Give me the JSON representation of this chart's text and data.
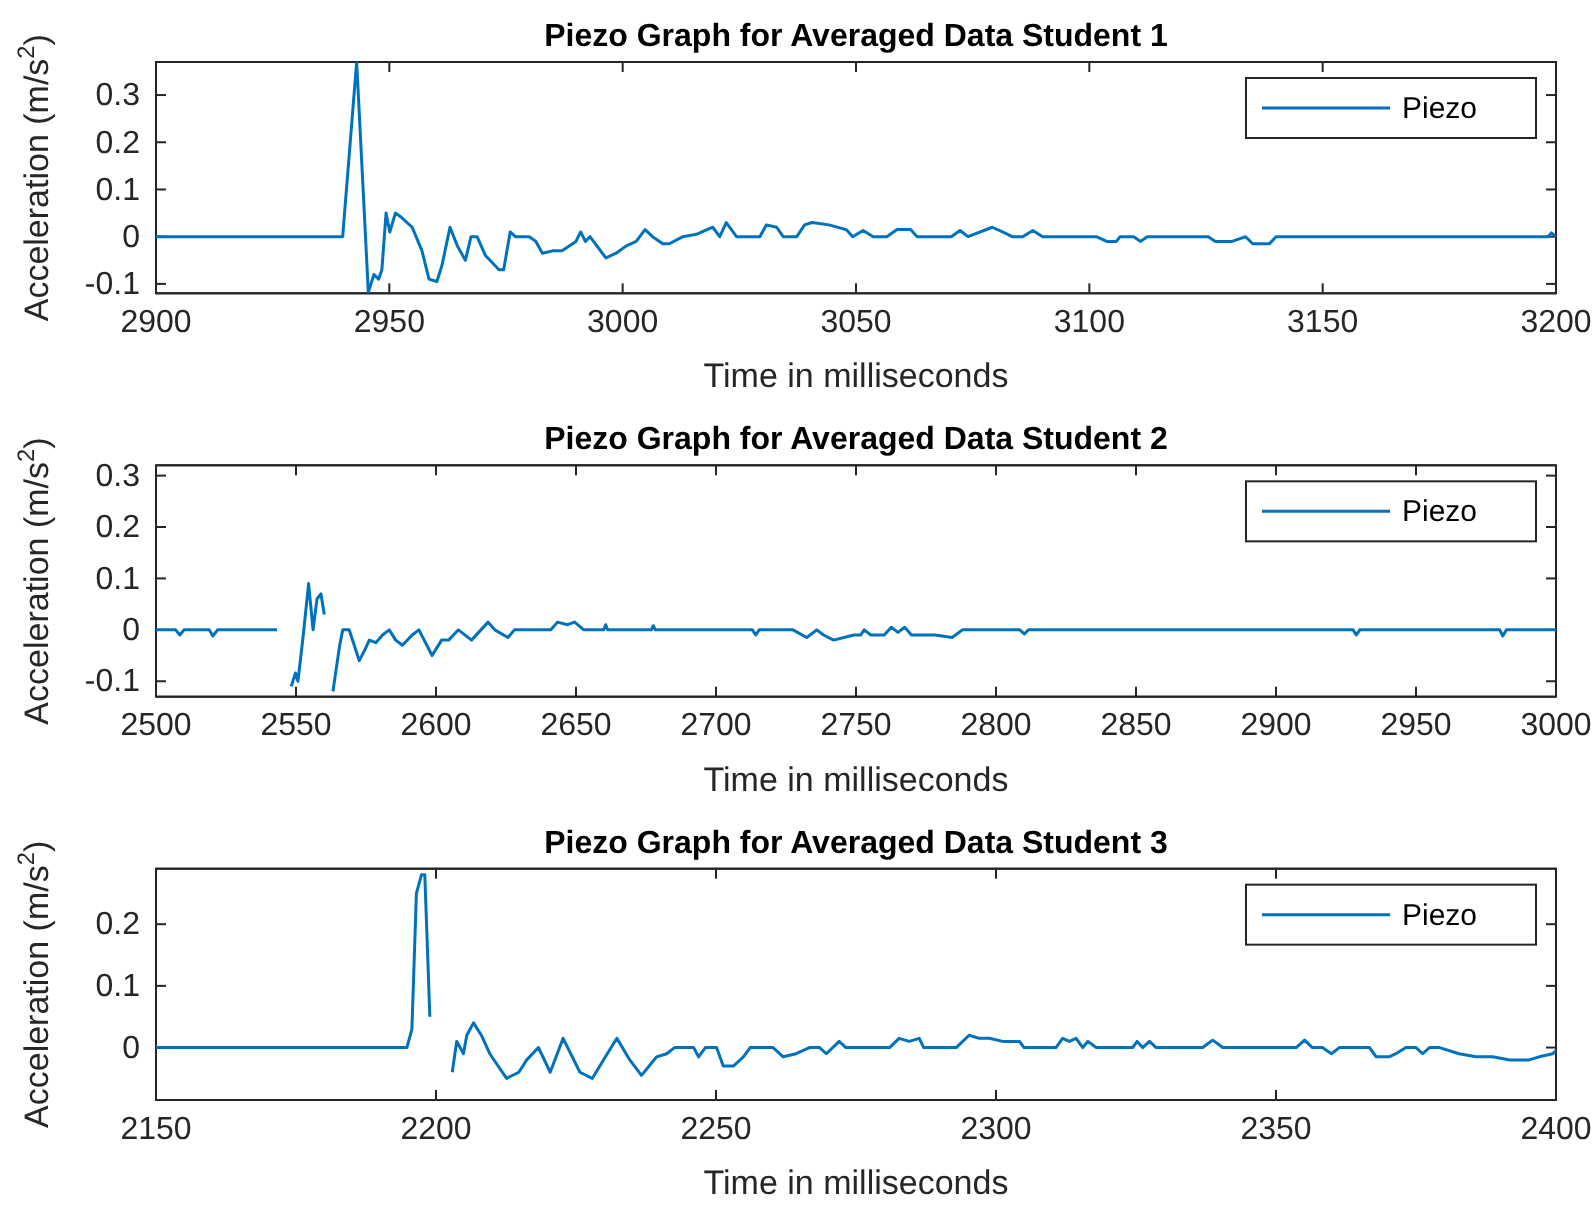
{
  "chart_data": [
    {
      "type": "line",
      "title": "Piezo Graph for Averaged Data Student 1",
      "xlabel": "Time in milliseconds",
      "ylabel": "Acceleration (m/s$^{2}$)",
      "xlim": [
        2900,
        3200
      ],
      "xticks": [
        2900,
        2950,
        3000,
        3050,
        3100,
        3150,
        3200
      ],
      "ylim": [
        -0.12,
        0.37
      ],
      "yticks": [
        -0.1,
        0,
        0.1,
        0.2,
        0.3
      ],
      "grid": false,
      "legend": "top right",
      "line_style": "solid",
      "marker": "none",
      "series": [
        {
          "name": "Piezo",
          "color": "#0072bd",
          "x": [
            2900,
            2940,
            2943,
            2945.5,
            2946.7,
            2947.7,
            2948.4,
            2949.3,
            2950.1,
            2951.3,
            2952.7,
            2954.9,
            2957,
            2958.5,
            2960.2,
            2961.3,
            2963,
            2964.6,
            2966.3,
            2967.5,
            2968.8,
            2970.6,
            2973.5,
            2974.5,
            2975.9,
            2977,
            2980,
            2981.4,
            2982.8,
            2985,
            2987,
            2990,
            2991,
            2992,
            2993,
            2996.4,
            2998.6,
            3000.7,
            3002.9,
            3004.8,
            3006.4,
            3008.6,
            3010,
            3012.9,
            3015.8,
            3019.3,
            3020.8,
            3022.2,
            3024.4,
            3029.4,
            3030.8,
            3033,
            3034.4,
            3037.3,
            3039,
            3040.6,
            3044.2,
            3047.9,
            3049.3,
            3051.5,
            3053.7,
            3056.6,
            3058.8,
            3061.7,
            3063.1,
            3070.4,
            3072.3,
            3074,
            3079.2,
            3081.4,
            3083.5,
            3085.7,
            3087.9,
            3090,
            3101.5,
            3103.7,
            3105.8,
            3106.6,
            3109.5,
            3111,
            3112.4,
            3125.5,
            3127,
            3130.6,
            3133.5,
            3135,
            3138.6,
            3140,
            3198.3,
            3199,
            3200
          ],
          "values": [
            0,
            0,
            0.37,
            -0.118,
            -0.08,
            -0.09,
            -0.07,
            0.05,
            0.01,
            0.05,
            0.04,
            0.02,
            -0.03,
            -0.09,
            -0.095,
            -0.06,
            0.02,
            -0.02,
            -0.05,
            0,
            0,
            -0.04,
            -0.07,
            -0.07,
            0.01,
            0,
            0,
            -0.01,
            -0.035,
            -0.03,
            -0.03,
            -0.01,
            0.01,
            -0.01,
            0,
            -0.045,
            -0.035,
            -0.02,
            -0.01,
            0.015,
            0,
            -0.015,
            -0.015,
            0,
            0.005,
            0.02,
            0,
            0.03,
            0,
            0,
            0.025,
            0.02,
            0,
            0,
            0.025,
            0.03,
            0.025,
            0.015,
            0,
            0.013,
            0,
            0,
            0.015,
            0.015,
            0,
            0,
            0.013,
            0,
            0.02,
            0.01,
            0,
            0,
            0.013,
            0,
            0,
            -0.01,
            -0.01,
            0,
            0,
            -0.01,
            0,
            0,
            -0.01,
            -0.01,
            0,
            -0.015,
            -0.015,
            0,
            0,
            0.008,
            0
          ]
        }
      ]
    },
    {
      "type": "line",
      "title": "Piezo Graph for Averaged Data Student 2",
      "xlabel": "Time in milliseconds",
      "ylabel": "Acceleration (m/s$^{2}$)",
      "xlim": [
        2500,
        3000
      ],
      "xticks": [
        2500,
        2550,
        2600,
        2650,
        2700,
        2750,
        2800,
        2850,
        2900,
        2950,
        3000
      ],
      "ylim": [
        -0.13,
        0.32
      ],
      "yticks": [
        -0.1,
        0,
        0.1,
        0.2,
        0.3
      ],
      "grid": false,
      "legend": "top right",
      "line_style": "solid",
      "marker": "none",
      "series": [
        {
          "name": "Piezo",
          "color": "#0072bd",
          "x": [
            2500,
            2507,
            2508.5,
            2510,
            2519,
            2520.3,
            2522,
            2543.2,
            2545.5,
            2546.7,
            2548.3,
            2549.8,
            2550.7,
            2552.6,
            2554.5,
            2556.1,
            2557.5,
            2558.9,
            2560.1,
            2562,
            2563.2,
            2565.6,
            2566.7,
            2569,
            2572.6,
            2574.5,
            2576.2,
            2578.5,
            2580.9,
            2583.3,
            2585.6,
            2588,
            2591.5,
            2593.9,
            2598.6,
            2602,
            2604.5,
            2608,
            2612.7,
            2618.6,
            2621,
            2625.7,
            2628,
            2641,
            2643.4,
            2647,
            2649.5,
            2652.8,
            2659.9,
            2660.6,
            2661.3,
            2676.9,
            2677.6,
            2678.3,
            2713,
            2714.2,
            2715.4,
            2727.5,
            2732.4,
            2736,
            2738.4,
            2742,
            2745.7,
            2749.3,
            2751.7,
            2752.9,
            2755.3,
            2760.1,
            2762.6,
            2765,
            2767.4,
            2769.8,
            2778.3,
            2784.3,
            2788,
            2808.5,
            2810.1,
            2811.6,
            2927.5,
            2928.7,
            2929.9,
            2979.9,
            2981,
            2982.3,
            3000
          ],
          "values": [
            0,
            0,
            -0.01,
            0,
            0,
            -0.012,
            0,
            0,
            null,
            null,
            -0.11,
            -0.084,
            -0.1,
            -0.01,
            0.09,
            0,
            0.06,
            0.07,
            0.03,
            null,
            -0.12,
            -0.03,
            0,
            0,
            -0.06,
            -0.04,
            -0.02,
            -0.025,
            -0.01,
            0,
            -0.02,
            -0.03,
            -0.01,
            0,
            -0.05,
            -0.02,
            -0.02,
            0,
            -0.02,
            0.015,
            0,
            -0.015,
            0,
            0,
            0.015,
            0.01,
            0.015,
            0,
            0,
            0.01,
            0,
            0,
            0.008,
            0,
            0,
            -0.01,
            0,
            0,
            -0.015,
            0,
            -0.01,
            -0.02,
            -0.015,
            -0.01,
            -0.01,
            0,
            -0.01,
            -0.01,
            0.005,
            -0.005,
            0.005,
            -0.01,
            -0.01,
            -0.015,
            0,
            0,
            -0.008,
            0,
            0,
            -0.01,
            0,
            0,
            -0.012,
            0,
            0
          ]
        }
      ]
    },
    {
      "type": "line",
      "title": "Piezo Graph for Averaged Data Student 3",
      "xlabel": "Time in milliseconds",
      "ylabel": "Acceleration (m/s$^{2}$)",
      "xlim": [
        2150,
        2400
      ],
      "xticks": [
        2150,
        2200,
        2250,
        2300,
        2350,
        2400
      ],
      "ylim": [
        -0.085,
        0.29
      ],
      "yticks": [
        0,
        0.1,
        0.2
      ],
      "grid": false,
      "legend": "top right",
      "line_style": "solid",
      "marker": "none",
      "series": [
        {
          "name": "Piezo",
          "color": "#0072bd",
          "x": [
            2150,
            2194.8,
            2195.7,
            2196.5,
            2197.4,
            2198,
            2198.9,
            2200.1,
            2201.9,
            2202.9,
            2203.7,
            2204.9,
            2205.5,
            2206.7,
            2208.1,
            2209.6,
            2212.6,
            2214.8,
            2216.2,
            2218.3,
            2220.4,
            2222.7,
            2225.7,
            2227.9,
            2229.9,
            2232.3,
            2234.6,
            2236.7,
            2239.4,
            2241.2,
            2242.6,
            2246,
            2246.9,
            2248.1,
            2250.1,
            2251.3,
            2253.1,
            2254.9,
            2256.1,
            2260.2,
            2262,
            2264.3,
            2266.7,
            2268.5,
            2269.7,
            2272,
            2273.2,
            2281,
            2282.7,
            2284.5,
            2286.3,
            2287.1,
            2292.9,
            2295.2,
            2297,
            2298.8,
            2301.2,
            2304.2,
            2305,
            2310.7,
            2311.9,
            2313.1,
            2314.3,
            2315.5,
            2316.4,
            2317.9,
            2324.4,
            2325.2,
            2326.2,
            2327.4,
            2328.6,
            2336.9,
            2338.7,
            2340.5,
            2353.6,
            2355.1,
            2356.5,
            2358.3,
            2359.9,
            2361.3,
            2366.7,
            2367.9,
            2370.2,
            2371.4,
            2373.2,
            2375,
            2376.2,
            2377.4,
            2379.2,
            2382.7,
            2385.7,
            2388.7,
            2391.7,
            2395.2,
            2397,
            2399.4,
            2400
          ],
          "values": [
            0,
            0,
            0.03,
            0.25,
            0.28,
            0.28,
            0.05,
            null,
            null,
            -0.04,
            0.01,
            -0.01,
            0.02,
            0.04,
            0.02,
            -0.01,
            -0.05,
            -0.04,
            -0.02,
            0,
            -0.04,
            0.015,
            -0.04,
            -0.05,
            -0.02,
            0.015,
            -0.02,
            -0.045,
            -0.015,
            -0.01,
            0,
            0,
            -0.015,
            0,
            0,
            -0.03,
            -0.03,
            -0.015,
            0,
            0,
            -0.015,
            -0.01,
            0,
            0,
            -0.01,
            0.01,
            0,
            0,
            0.015,
            0.01,
            0.015,
            0,
            0,
            0.02,
            0.015,
            0.015,
            0.01,
            0.01,
            0,
            0,
            0.015,
            0.01,
            0.015,
            0,
            0.01,
            0,
            0,
            0.01,
            0,
            0.01,
            0,
            0,
            0.012,
            0,
            0,
            0.012,
            0,
            0,
            -0.01,
            0,
            0,
            -0.015,
            -0.015,
            -0.01,
            0,
            0,
            -0.01,
            0,
            0,
            -0.01,
            -0.015,
            -0.015,
            -0.02,
            -0.02,
            -0.015,
            -0.01,
            -0.005
          ]
        }
      ]
    }
  ]
}
